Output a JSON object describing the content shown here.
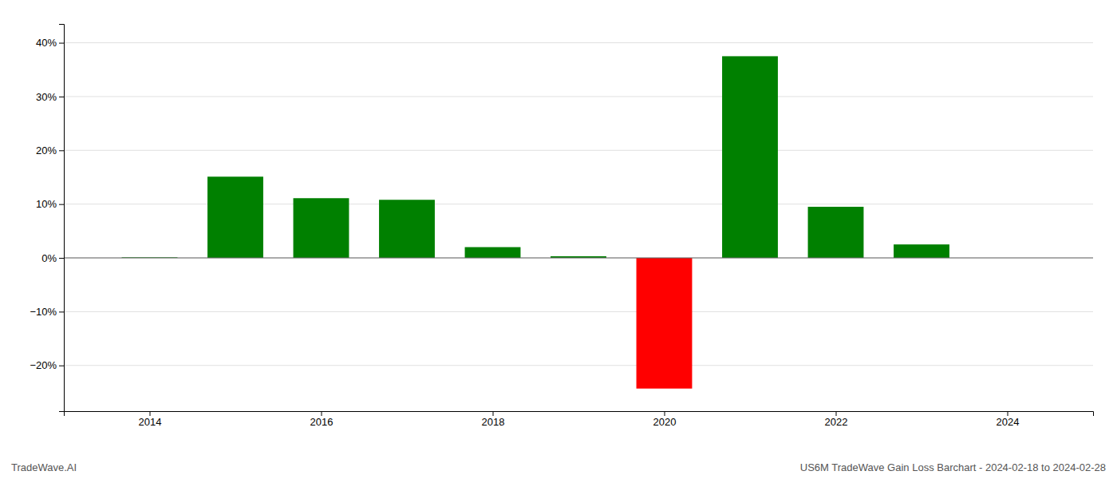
{
  "chart_data": {
    "type": "bar",
    "title": "US6M TradeWave Gain Loss Barchart - 2024-02-18 to 2024-02-28",
    "annotations": [
      "TradeWave.AI"
    ],
    "x": [
      2014,
      2015,
      2016,
      2017,
      2018,
      2019,
      2020,
      2021,
      2022,
      2023
    ],
    "values": [
      0.001,
      0.151,
      0.111,
      0.108,
      0.02,
      0.003,
      -0.243,
      0.375,
      0.095,
      0.025
    ],
    "colors": [
      "#008000",
      "#008000",
      "#008000",
      "#008000",
      "#008000",
      "#008000",
      "#ff0000",
      "#008000",
      "#008000",
      "#008000"
    ],
    "xlim": [
      2013.0,
      2025.0
    ],
    "xticks": [
      2014,
      2016,
      2018,
      2020,
      2022,
      2024
    ],
    "ylim": [
      -0.285,
      0.435
    ],
    "yticks": [
      {
        "value": -0.2,
        "label": "−20%"
      },
      {
        "value": -0.1,
        "label": "−10%"
      },
      {
        "value": 0.0,
        "label": "0%"
      },
      {
        "value": 0.1,
        "label": "10%"
      },
      {
        "value": 0.2,
        "label": "20%"
      },
      {
        "value": 0.3,
        "label": "30%"
      },
      {
        "value": 0.4,
        "label": "40%"
      }
    ],
    "grid": true
  }
}
